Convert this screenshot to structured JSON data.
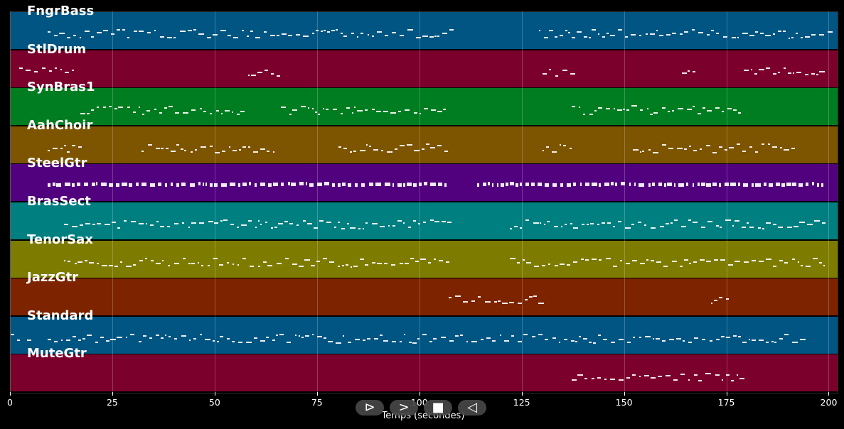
{
  "tracks": [
    {
      "name": "FngrBass",
      "color": "#005583"
    },
    {
      "name": "StlDrum",
      "color": "#7c002c"
    },
    {
      "name": "SynBras1",
      "color": "#007d20"
    },
    {
      "name": "AahChoir",
      "color": "#7d5400"
    },
    {
      "name": "SteelGtr",
      "color": "#51007e"
    },
    {
      "name": "BrasSect",
      "color": "#007f80"
    },
    {
      "name": "TenorSax",
      "color": "#7d7c00"
    },
    {
      "name": "JazzGtr",
      "color": "#7d2300"
    },
    {
      "name": "Standard",
      "color": "#005583"
    },
    {
      "name": "MuteGtr",
      "color": "#7c002c"
    }
  ],
  "x_axis": {
    "label": "Temps (secondes)",
    "min": 0,
    "max": 202,
    "ticks": [
      "0",
      "25",
      "50",
      "75",
      "100",
      "125",
      "150",
      "175",
      "200"
    ]
  },
  "controls": [
    {
      "name": "play-button",
      "symbol": "⊳"
    },
    {
      "name": "forward-button",
      "symbol": ">"
    },
    {
      "name": "stop-button",
      "symbol": "■"
    },
    {
      "name": "back-button",
      "symbol": "◁"
    }
  ]
}
